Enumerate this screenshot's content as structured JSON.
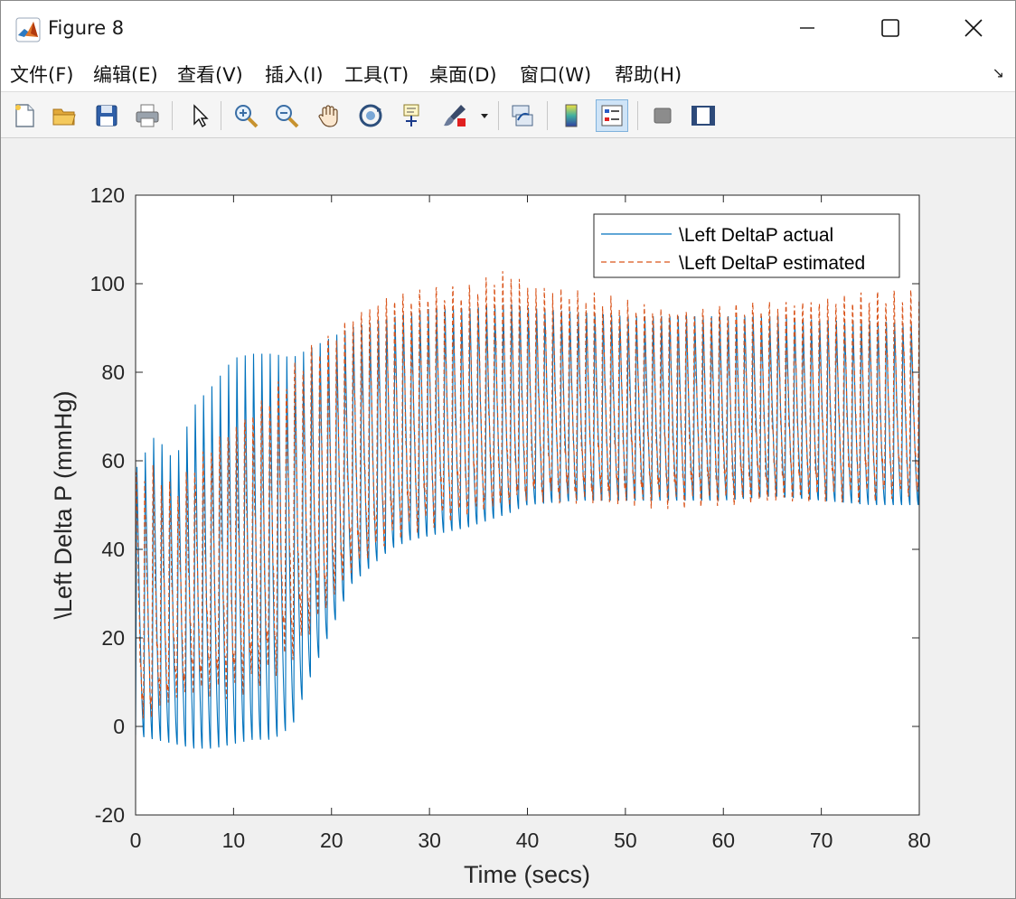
{
  "window": {
    "title": "Figure 8",
    "controls": {
      "minimize": "minimize",
      "maximize": "maximize",
      "close": "close"
    }
  },
  "menu": {
    "items": [
      {
        "label": "文件(F)",
        "key": "F"
      },
      {
        "label": "编辑(E)",
        "key": "E"
      },
      {
        "label": "查看(V)",
        "key": "V"
      },
      {
        "label": "插入(I)",
        "key": "I"
      },
      {
        "label": "工具(T)",
        "key": "T"
      },
      {
        "label": "桌面(D)",
        "key": "D"
      },
      {
        "label": "窗口(W)",
        "key": "W"
      },
      {
        "label": "帮助(H)",
        "key": "H"
      }
    ],
    "dock_arrow": "↘"
  },
  "toolbar": {
    "buttons": [
      {
        "icon": "new-figure-icon"
      },
      {
        "icon": "open-file-icon"
      },
      {
        "icon": "save-icon"
      },
      {
        "icon": "print-icon"
      },
      {
        "icon": "edit-plot-arrow-icon"
      },
      {
        "icon": "zoom-in-icon"
      },
      {
        "icon": "zoom-out-icon"
      },
      {
        "icon": "pan-hand-icon"
      },
      {
        "icon": "rotate-3d-icon"
      },
      {
        "icon": "data-cursor-icon"
      },
      {
        "icon": "brush-icon"
      },
      {
        "icon": "link-plot-icon"
      },
      {
        "icon": "colorbar-icon"
      },
      {
        "icon": "legend-icon",
        "active": true
      },
      {
        "icon": "hide-plot-tools-icon"
      },
      {
        "icon": "show-plot-tools-icon"
      }
    ]
  },
  "chart_data": {
    "type": "line",
    "title": "",
    "xlabel": "Time (secs)",
    "ylabel": "\\Left Delta P (mmHg)",
    "xlim": [
      0,
      80
    ],
    "ylim": [
      -20,
      120
    ],
    "xticks": [
      0,
      10,
      20,
      30,
      40,
      50,
      60,
      70,
      80
    ],
    "yticks": [
      -20,
      0,
      20,
      40,
      60,
      80,
      100,
      120
    ],
    "grid": false,
    "legend_position": "top-right",
    "cycle_period_secs": 0.85,
    "series": [
      {
        "name": "\\Left DeltaP actual",
        "style": "solid",
        "color": "#0072BD",
        "envelope_time": [
          0,
          2,
          4,
          6,
          8,
          10,
          12,
          14,
          16,
          18,
          20,
          22,
          24,
          26,
          28,
          30,
          34,
          38,
          40,
          45,
          50,
          55,
          60,
          65,
          70,
          75,
          80
        ],
        "envelope_upper": [
          60,
          68,
          62,
          75,
          80,
          86,
          87,
          87,
          86,
          88,
          90,
          92,
          93,
          94,
          95,
          96,
          96,
          97,
          96,
          95,
          94,
          94,
          94,
          94,
          93,
          93,
          92
        ],
        "envelope_lower": [
          -2,
          -3,
          -4,
          -5,
          -5,
          -4,
          -3,
          -3,
          0,
          12,
          22,
          32,
          36,
          40,
          42,
          43,
          45,
          48,
          50,
          51,
          51,
          51,
          51,
          52,
          51,
          50,
          50
        ]
      },
      {
        "name": "\\Left DeltaP estimated",
        "style": "dashed",
        "color": "#D95319",
        "envelope_time": [
          0,
          2,
          4,
          6,
          8,
          10,
          12,
          14,
          16,
          18,
          20,
          22,
          24,
          26,
          28,
          30,
          34,
          38,
          40,
          45,
          50,
          55,
          60,
          65,
          70,
          75,
          80
        ],
        "envelope_upper": [
          58,
          60,
          55,
          62,
          68,
          72,
          76,
          80,
          84,
          88,
          90,
          94,
          96,
          98,
          98,
          99,
          99,
          103,
          100,
          99,
          98,
          97,
          97,
          97,
          97,
          98,
          98
        ],
        "envelope_lower": [
          0,
          5,
          8,
          10,
          10,
          10,
          12,
          14,
          18,
          24,
          30,
          36,
          40,
          43,
          45,
          46,
          48,
          50,
          52,
          52,
          52,
          52,
          52,
          52,
          52,
          52,
          52
        ]
      }
    ]
  }
}
